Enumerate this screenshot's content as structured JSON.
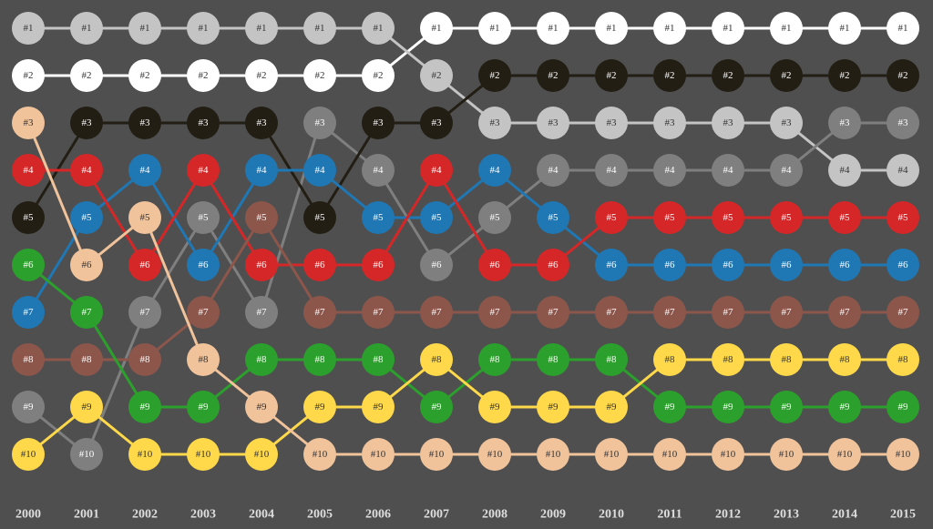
{
  "chart_data": {
    "type": "bump",
    "y_reversed": true,
    "ylim": [
      1,
      10
    ],
    "x": [
      "2000",
      "2001",
      "2002",
      "2003",
      "2004",
      "2005",
      "2006",
      "2007",
      "2008",
      "2009",
      "2010",
      "2011",
      "2012",
      "2013",
      "2014",
      "2015"
    ],
    "series": [
      {
        "color": "#ffffff",
        "values": [
          2,
          2,
          2,
          2,
          2,
          2,
          2,
          1,
          1,
          1,
          1,
          1,
          1,
          1,
          1,
          1
        ],
        "value_labels": [
          "#2",
          "#2",
          "#2",
          "#2",
          "#2",
          "#2",
          "#2",
          "#1",
          "#1",
          "#1",
          "#1",
          "#1",
          "#1",
          "#1",
          "#1",
          "#1"
        ]
      },
      {
        "color": "#c4c4c4",
        "values": [
          1,
          1,
          1,
          1,
          1,
          1,
          1,
          2,
          3,
          3,
          3,
          3,
          3,
          3,
          4,
          4
        ],
        "value_labels": [
          "#1",
          "#1",
          "#1",
          "#1",
          "#1",
          "#1",
          "#1",
          "#2",
          "#3",
          "#3",
          "#3",
          "#3",
          "#3",
          "#3",
          "#4",
          "#4"
        ]
      },
      {
        "color": "#7f7f7f",
        "values": [
          9,
          10,
          7,
          5,
          7,
          3,
          4,
          6,
          5,
          4,
          4,
          4,
          4,
          4,
          3,
          3
        ],
        "value_labels": [
          "#9",
          "#10",
          "#7",
          "#5",
          "#7",
          "#3",
          "#4",
          "#6",
          "#5",
          "#4",
          "#4",
          "#4",
          "#4",
          "#4",
          "#3",
          "#3"
        ]
      },
      {
        "color": "#221e14",
        "values": [
          5,
          3,
          3,
          3,
          3,
          5,
          3,
          3,
          2,
          2,
          2,
          2,
          2,
          2,
          2,
          2
        ],
        "value_labels": [
          "#5",
          "#3",
          "#3",
          "#3",
          "#3",
          "#5",
          "#3",
          "#3",
          "#2",
          "#2",
          "#2",
          "#2",
          "#2",
          "#2",
          "#2",
          "#2"
        ]
      },
      {
        "color": "#1f77b4",
        "values": [
          7,
          5,
          4,
          6,
          4,
          4,
          5,
          5,
          4,
          5,
          6,
          6,
          6,
          6,
          6,
          6
        ],
        "value_labels": [
          "#7",
          "#5",
          "#4",
          "#6",
          "#4",
          "#4",
          "#5",
          "#5",
          "#4",
          "#5",
          "#6",
          "#6",
          "#6",
          "#6",
          "#6",
          "#6"
        ]
      },
      {
        "color": "#d62728",
        "values": [
          4,
          4,
          6,
          4,
          6,
          6,
          6,
          4,
          6,
          6,
          5,
          5,
          5,
          5,
          5,
          5
        ],
        "value_labels": [
          "#4",
          "#4",
          "#6",
          "#4",
          "#6",
          "#6",
          "#6",
          "#4",
          "#6",
          "#6",
          "#5",
          "#5",
          "#5",
          "#5",
          "#5",
          "#5"
        ]
      },
      {
        "color": "#8c564b",
        "values": [
          8,
          8,
          8,
          7,
          5,
          7,
          7,
          7,
          7,
          7,
          7,
          7,
          7,
          7,
          7,
          7
        ],
        "value_labels": [
          "#8",
          "#8",
          "#8",
          "#7",
          "#5",
          "#7",
          "#7",
          "#7",
          "#7",
          "#7",
          "#7",
          "#7",
          "#7",
          "#7",
          "#7",
          "#7"
        ]
      },
      {
        "color": "#2ca02c",
        "values": [
          6,
          7,
          9,
          9,
          8,
          8,
          8,
          9,
          8,
          8,
          8,
          9,
          9,
          9,
          9,
          9
        ],
        "value_labels": [
          "#6",
          "#7",
          "#9",
          "#9",
          "#8",
          "#8",
          "#8",
          "#9",
          "#8",
          "#8",
          "#8",
          "#9",
          "#9",
          "#9",
          "#9",
          "#9"
        ]
      },
      {
        "color": "#ffd94a",
        "values": [
          10,
          9,
          10,
          10,
          10,
          9,
          9,
          8,
          9,
          9,
          9,
          8,
          8,
          8,
          8,
          8
        ],
        "value_labels": [
          "#10",
          "#9",
          "#10",
          "#10",
          "#10",
          "#9",
          "#9",
          "#8",
          "#9",
          "#9",
          "#9",
          "#8",
          "#8",
          "#8",
          "#8",
          "#8"
        ]
      },
      {
        "color": "#f0c39b",
        "values": [
          3,
          6,
          5,
          8,
          9,
          10,
          10,
          10,
          10,
          10,
          10,
          10,
          10,
          10,
          10,
          10
        ],
        "value_labels": [
          "#3",
          "#6",
          "#5",
          "#8",
          "#9",
          "#10",
          "#10",
          "#10",
          "#10",
          "#10",
          "#10",
          "#10",
          "#10",
          "#10",
          "#10",
          "#10"
        ]
      }
    ]
  }
}
